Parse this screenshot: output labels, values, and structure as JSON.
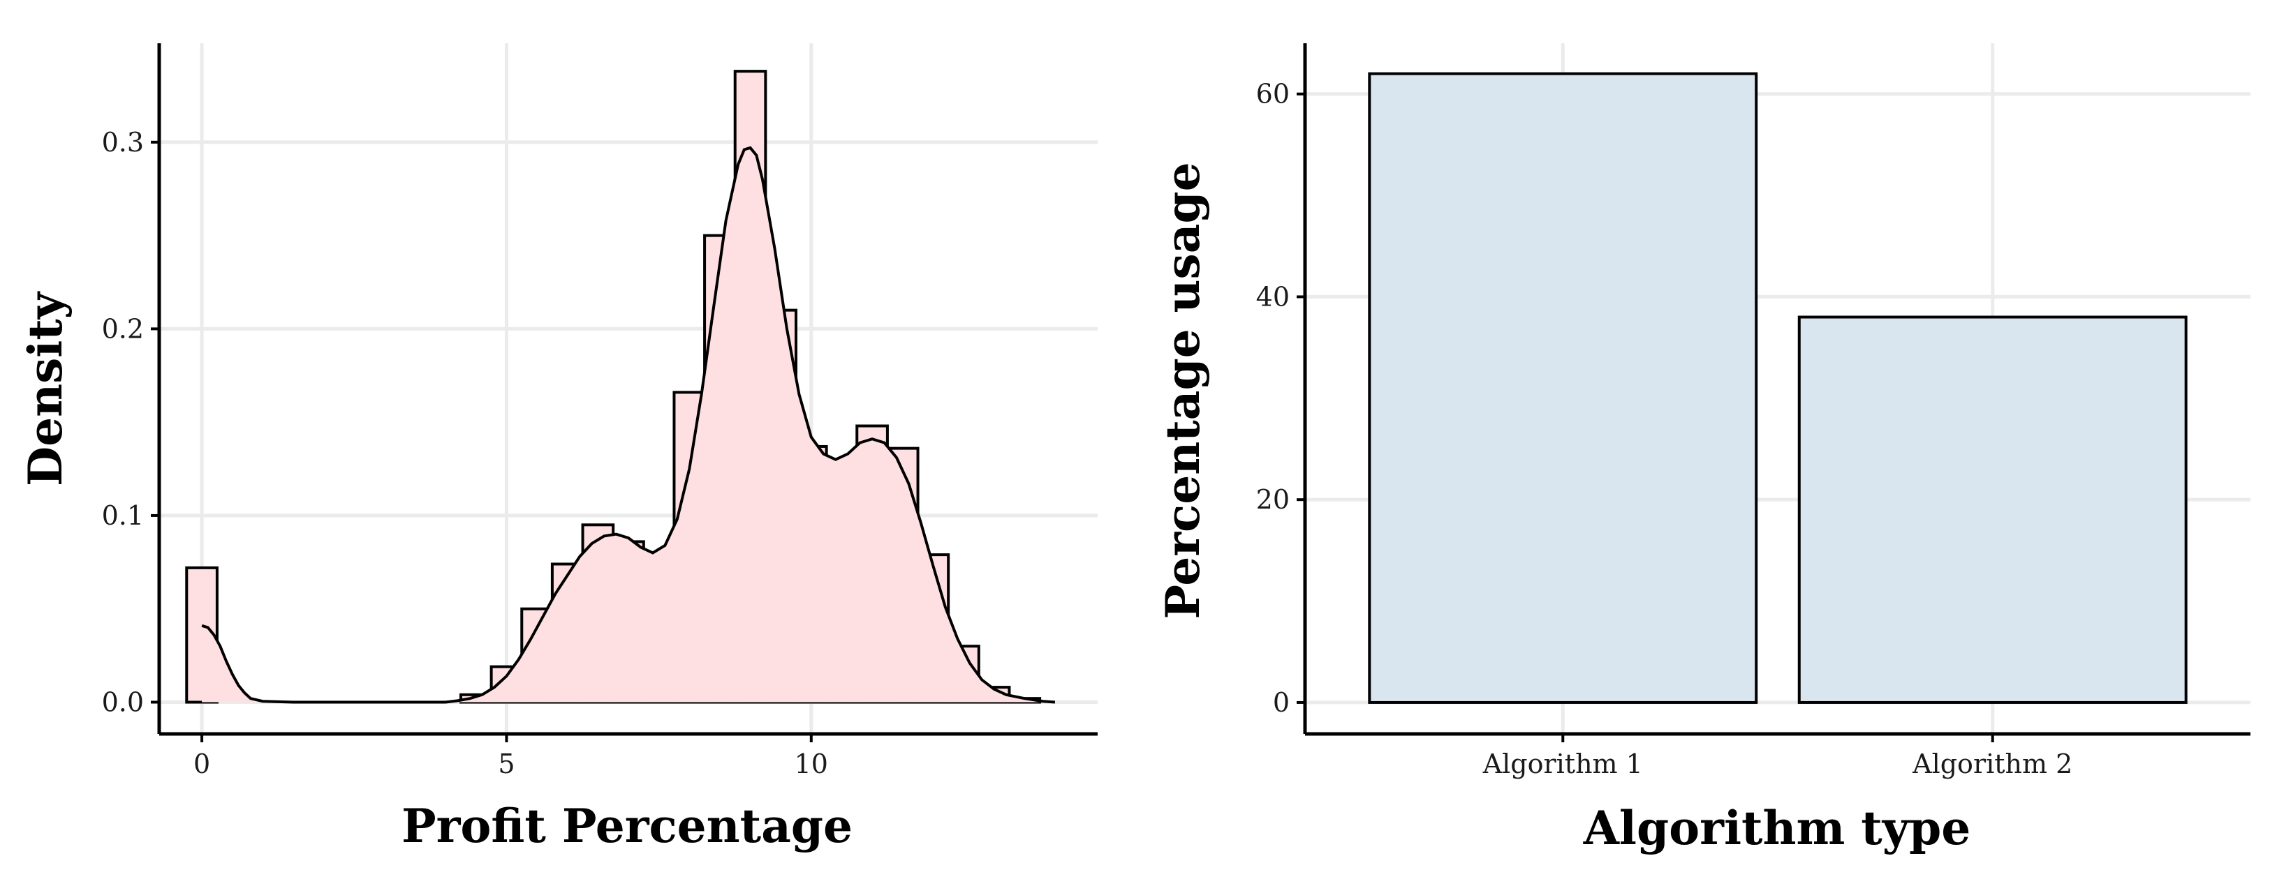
{
  "chart_data": [
    {
      "type": "bar",
      "subtype": "histogram-with-density",
      "title": "",
      "xlabel": "Profit Percentage",
      "ylabel": "Density",
      "xlim": [
        -0.7,
        14.7
      ],
      "ylim": [
        -0.017,
        0.353
      ],
      "x_ticks": [
        0,
        5,
        10
      ],
      "x_tick_labels": [
        "0",
        "5",
        "10"
      ],
      "y_ticks": [
        0.0,
        0.1,
        0.2,
        0.3
      ],
      "y_tick_labels": [
        "0.0",
        "0.1",
        "0.2",
        "0.3"
      ],
      "grid": true,
      "legend": "none",
      "colors": {
        "fill": "#ffe0e2",
        "outline": "#000000",
        "grid": "#ebebeb"
      },
      "bin_width": 0.5,
      "bins": [
        {
          "x": 0.0,
          "density": 0.072
        },
        {
          "x": 4.5,
          "density": 0.004
        },
        {
          "x": 5.0,
          "density": 0.019
        },
        {
          "x": 5.5,
          "density": 0.05
        },
        {
          "x": 6.0,
          "density": 0.074
        },
        {
          "x": 6.5,
          "density": 0.095
        },
        {
          "x": 7.0,
          "density": 0.086
        },
        {
          "x": 7.5,
          "density": 0.067
        },
        {
          "x": 8.0,
          "density": 0.166
        },
        {
          "x": 8.5,
          "density": 0.25
        },
        {
          "x": 9.0,
          "density": 0.338
        },
        {
          "x": 9.5,
          "density": 0.21
        },
        {
          "x": 10.0,
          "density": 0.137
        },
        {
          "x": 10.5,
          "density": 0.128
        },
        {
          "x": 11.0,
          "density": 0.148
        },
        {
          "x": 11.5,
          "density": 0.136
        },
        {
          "x": 12.0,
          "density": 0.079
        },
        {
          "x": 12.5,
          "density": 0.03
        },
        {
          "x": 13.0,
          "density": 0.008
        },
        {
          "x": 13.5,
          "density": 0.002
        }
      ],
      "density_curve": {
        "x": [
          0.0,
          0.1,
          0.2,
          0.3,
          0.4,
          0.5,
          0.6,
          0.7,
          0.8,
          1.0,
          1.5,
          2.0,
          3.0,
          4.0,
          4.2,
          4.4,
          4.6,
          4.8,
          5.0,
          5.2,
          5.4,
          5.6,
          5.8,
          6.0,
          6.2,
          6.4,
          6.6,
          6.8,
          7.0,
          7.2,
          7.4,
          7.6,
          7.8,
          8.0,
          8.2,
          8.4,
          8.6,
          8.8,
          8.9,
          9.0,
          9.1,
          9.2,
          9.4,
          9.6,
          9.8,
          10.0,
          10.2,
          10.4,
          10.6,
          10.8,
          11.0,
          11.2,
          11.4,
          11.6,
          11.8,
          12.0,
          12.2,
          12.4,
          12.6,
          12.8,
          13.0,
          13.2,
          13.5,
          13.8,
          14.0
        ],
        "y": [
          0.041,
          0.04,
          0.036,
          0.03,
          0.022,
          0.015,
          0.009,
          0.005,
          0.002,
          0.0005,
          0.0,
          0.0,
          0.0,
          0.0,
          0.0008,
          0.002,
          0.004,
          0.008,
          0.014,
          0.023,
          0.034,
          0.046,
          0.058,
          0.068,
          0.078,
          0.085,
          0.089,
          0.09,
          0.088,
          0.083,
          0.08,
          0.084,
          0.098,
          0.125,
          0.165,
          0.212,
          0.258,
          0.288,
          0.296,
          0.297,
          0.293,
          0.28,
          0.243,
          0.2,
          0.165,
          0.142,
          0.133,
          0.13,
          0.133,
          0.139,
          0.141,
          0.139,
          0.131,
          0.117,
          0.096,
          0.073,
          0.051,
          0.034,
          0.021,
          0.012,
          0.007,
          0.004,
          0.002,
          0.0005,
          0.0
        ]
      }
    },
    {
      "type": "bar",
      "title": "",
      "xlabel": "Algorithm type",
      "ylabel": "Percentage usage",
      "categories": [
        "Algorithm 1",
        "Algorithm 2"
      ],
      "values": [
        62,
        38
      ],
      "ylim": [
        -3.1,
        65
      ],
      "y_ticks": [
        0,
        20,
        40,
        60
      ],
      "y_tick_labels": [
        "0",
        "20",
        "40",
        "60"
      ],
      "grid": true,
      "legend": "none",
      "colors": {
        "fill": "#dae6ef",
        "outline": "#000000",
        "grid": "#ebebeb"
      }
    }
  ]
}
